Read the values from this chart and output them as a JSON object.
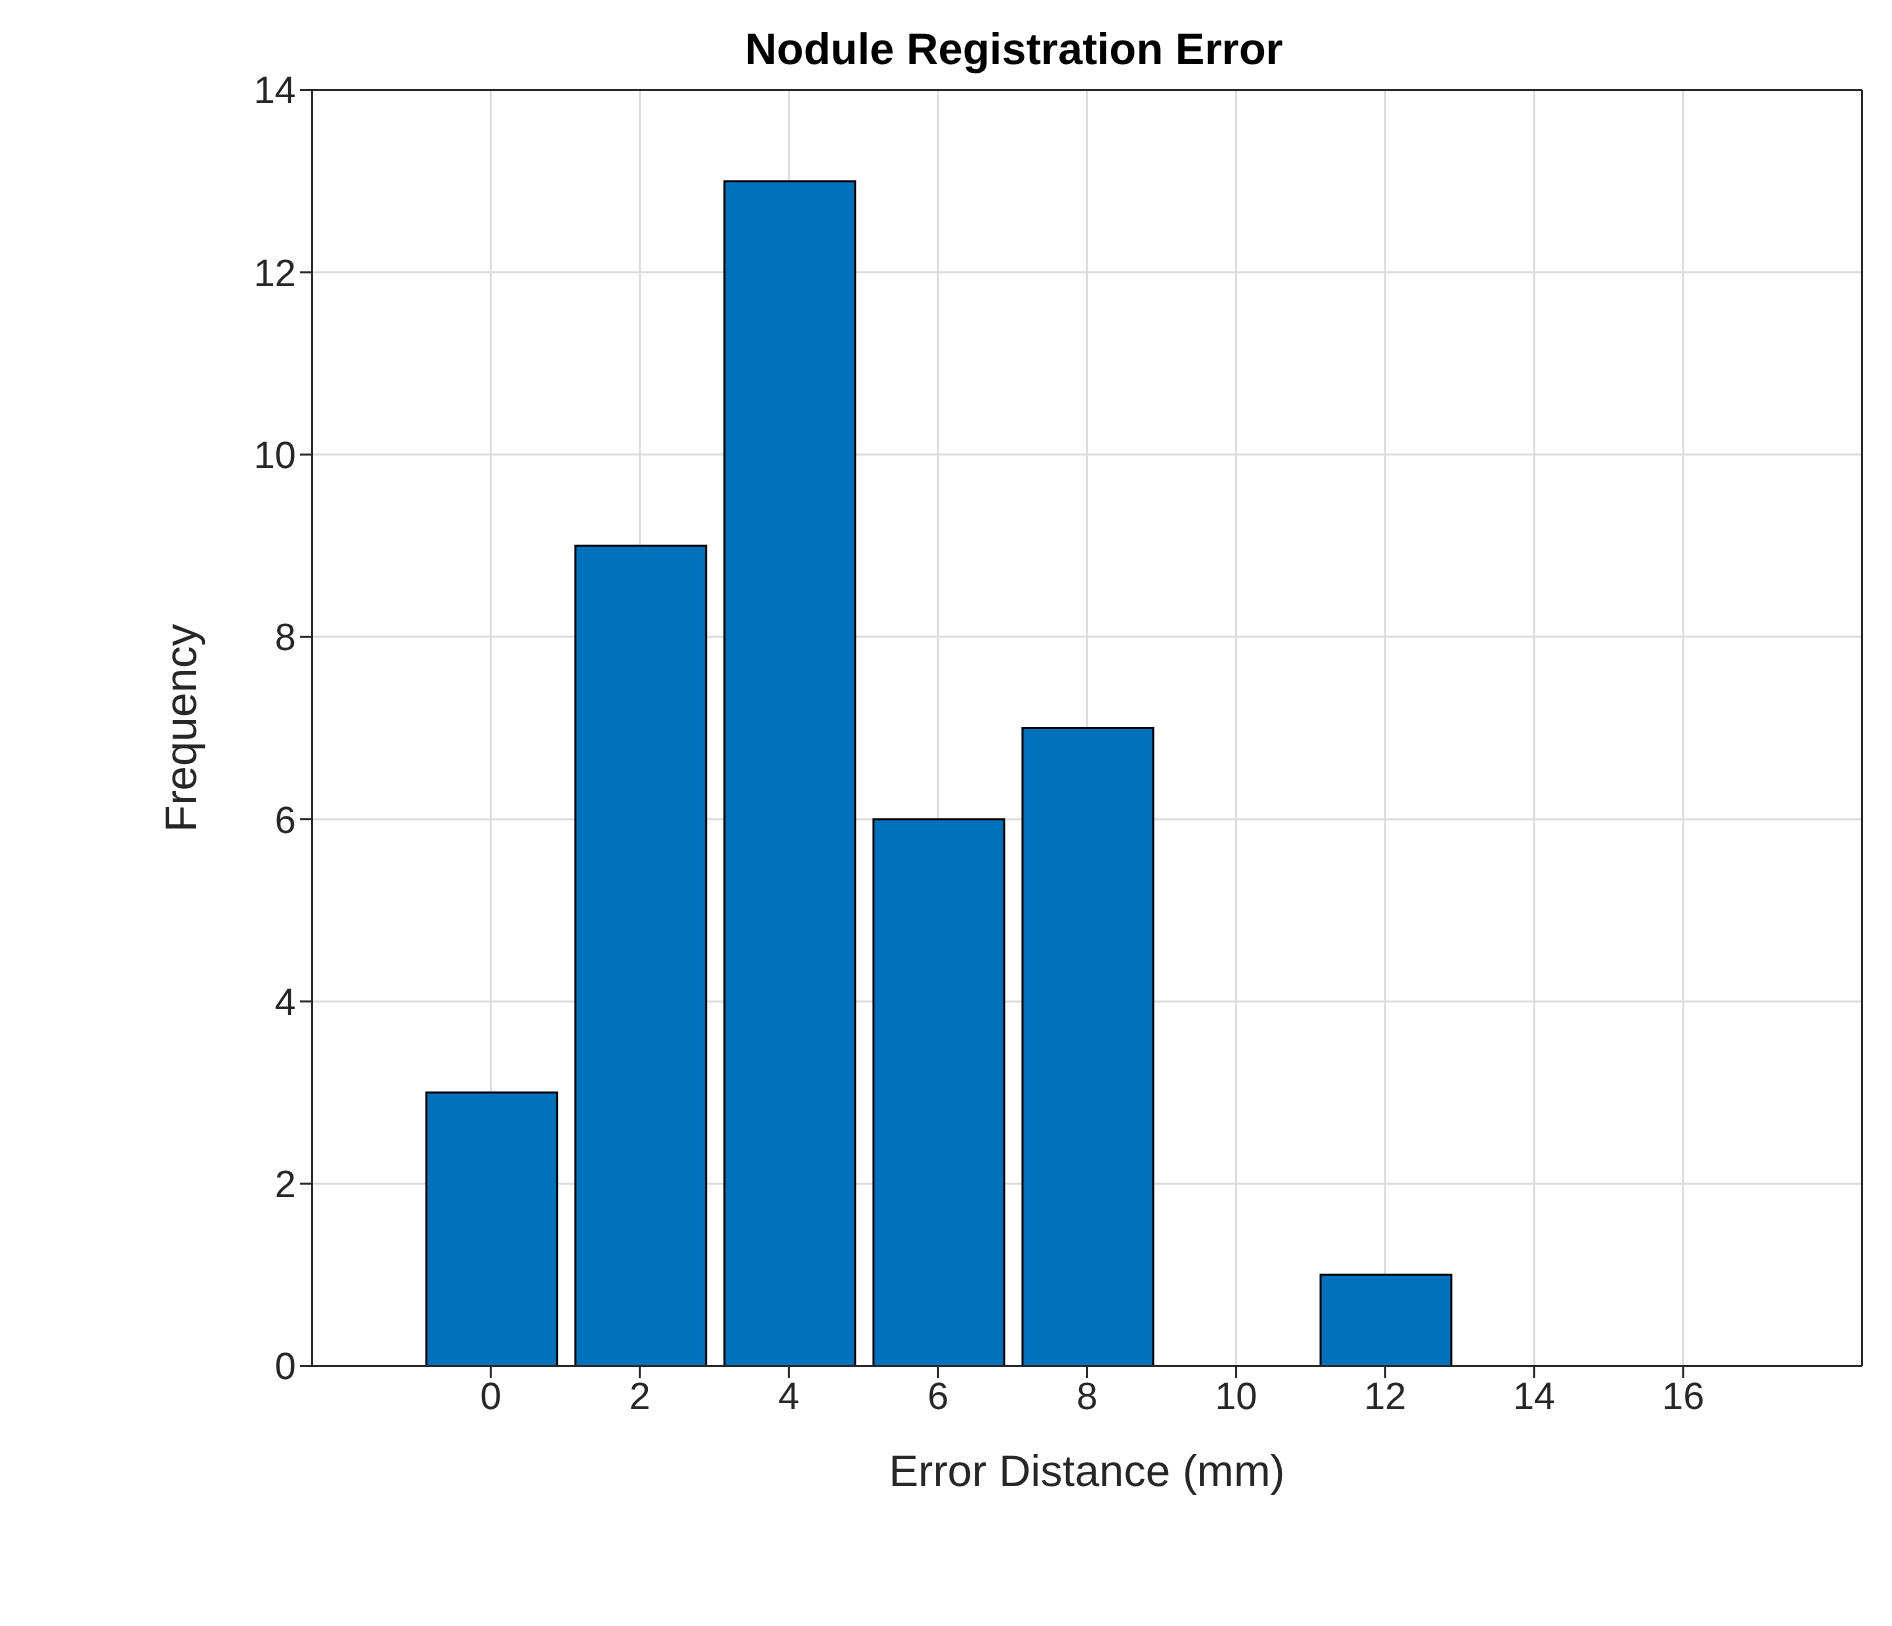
{
  "chart_data": {
    "type": "bar",
    "title": "Nodule Registration Error",
    "xlabel": "Error Distance (mm)",
    "ylabel": "Frequency",
    "x": [
      0,
      2,
      4,
      6,
      8,
      10,
      12,
      14,
      16
    ],
    "values": [
      3,
      9,
      13,
      6,
      7,
      0,
      1,
      0,
      0
    ],
    "color": "#0072bd",
    "xlim": [
      -2.4,
      18.4
    ],
    "xticks": [
      0,
      2,
      4,
      6,
      8,
      10,
      12,
      14,
      16
    ],
    "ylim": [
      0,
      14
    ],
    "yticks": [
      0,
      2,
      4,
      6,
      8,
      10,
      12,
      14
    ],
    "grid": true
  }
}
